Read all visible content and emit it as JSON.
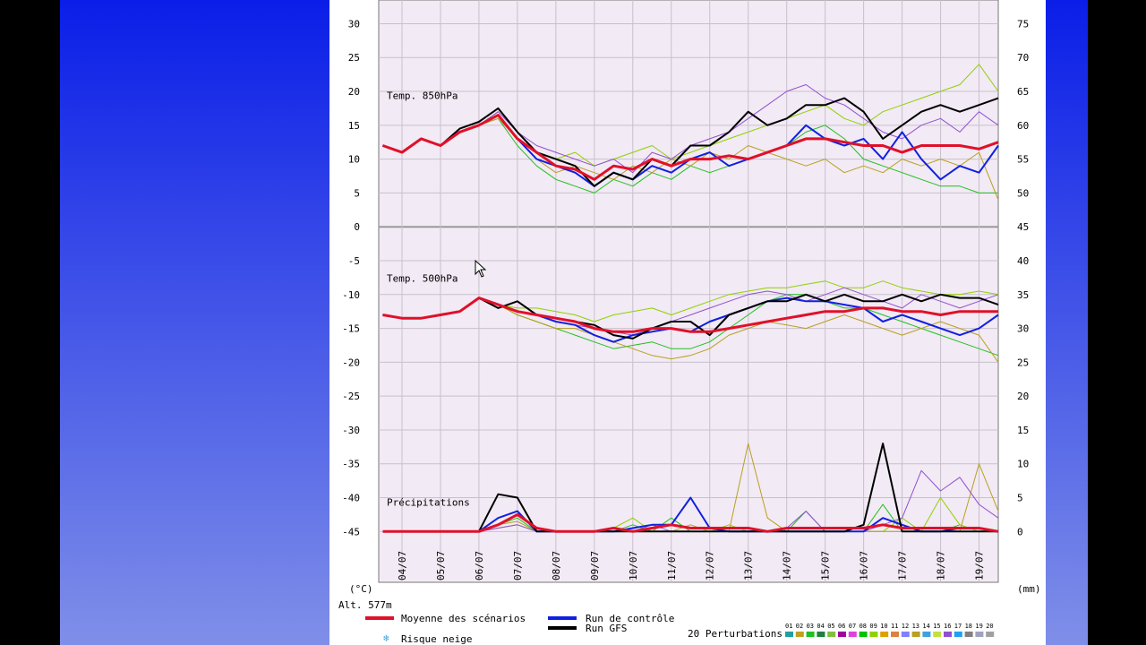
{
  "chart_data": {
    "type": "line",
    "alt_label": "Alt. 577m",
    "ylabel": "(°C)",
    "y2label": "(mm)",
    "categories": [
      null,
      "04/07",
      null,
      "05/07",
      null,
      "06/07",
      null,
      "07/07",
      null,
      "08/07",
      null,
      "09/07",
      null,
      "10/07",
      null,
      "11/07",
      null,
      "12/07",
      null,
      "13/07",
      null,
      "14/07",
      null,
      "15/07",
      null,
      "16/07",
      null,
      "17/07",
      null,
      "18/07",
      null,
      "19/07",
      null
    ],
    "ylim": [
      -52.5,
      33.5
    ],
    "yticks": [
      30,
      25,
      20,
      15,
      10,
      5,
      0,
      -5,
      -10,
      -15,
      -20,
      -25,
      -30,
      -35,
      -40,
      -45
    ],
    "y2lim": [
      -7.5,
      78.5
    ],
    "y2ticks": [
      75,
      70,
      65,
      60,
      55,
      50,
      45,
      40,
      35,
      30,
      25,
      20,
      15,
      10,
      5,
      0
    ],
    "grid": true,
    "panels": [
      {
        "label": "Temp. 850hPa",
        "axis": "y"
      },
      {
        "label": "Temp. 500hPa",
        "axis": "y"
      },
      {
        "label": "Précipitations",
        "axis": "y2"
      }
    ],
    "series": [
      {
        "name": "Moyenne des scénarios",
        "color": "#e0102a",
        "values": [
          [
            12,
            11,
            13,
            12,
            14,
            15,
            16.5,
            13,
            11,
            9,
            8.5,
            7,
            9,
            8.5,
            10,
            9,
            10,
            10,
            10.5,
            10,
            11,
            12,
            13,
            13,
            12.5,
            12,
            12,
            11,
            12,
            12,
            12,
            11.5,
            12.5
          ],
          [
            -13,
            -13.5,
            -13.5,
            -13,
            -12.5,
            -10.5,
            -11.5,
            -12.5,
            -13,
            -13.5,
            -14,
            -15,
            -15.5,
            -15.5,
            -15,
            -15,
            -15.5,
            -15.5,
            -15,
            -14.5,
            -14,
            -13.5,
            -13,
            -12.5,
            -12.5,
            -12,
            -12,
            -12.5,
            -12.5,
            -13,
            -12.5,
            -12.5,
            -12.5
          ],
          [
            0,
            0,
            0,
            0,
            0,
            0,
            1,
            2.5,
            0.5,
            0,
            0,
            0,
            0.5,
            0,
            0.5,
            1,
            0.5,
            0.5,
            0.5,
            0.5,
            0,
            0.5,
            0.5,
            0.5,
            0.5,
            0.5,
            1,
            0.5,
            0.5,
            0.5,
            0.5,
            0.5,
            0
          ]
        ]
      },
      {
        "name": "Run de contrôle",
        "color": "#1020e0",
        "values": [
          [
            12,
            11,
            13,
            12,
            14,
            15,
            16.5,
            13,
            10,
            9,
            8,
            6,
            8,
            7,
            9,
            8,
            10,
            11,
            9,
            10,
            11,
            12,
            15,
            13,
            12,
            13,
            10,
            14,
            10,
            7,
            9,
            8,
            12
          ],
          [
            -13,
            -13.5,
            -13.5,
            -13,
            -12.5,
            -10.5,
            -11.5,
            -12.5,
            -13,
            -14,
            -14.5,
            -16,
            -17,
            -16,
            -15.5,
            -15,
            -15.5,
            -14,
            -13,
            -12,
            -11,
            -10.5,
            -11,
            -11,
            -11.5,
            -12,
            -14,
            -13,
            -14,
            -15,
            -16,
            -15,
            -13
          ],
          [
            0,
            0,
            0,
            0,
            0,
            0,
            2,
            3,
            0,
            0,
            0,
            0,
            0,
            0.5,
            1,
            1,
            5,
            0.5,
            0,
            0,
            0,
            0,
            0,
            0,
            0,
            0,
            2,
            1,
            0,
            0,
            0.5,
            0.5,
            0
          ]
        ]
      },
      {
        "name": "Run GFS",
        "color": "#000000",
        "values": [
          [
            12,
            11,
            13,
            12,
            14.5,
            15.5,
            17.5,
            14,
            11,
            10,
            9,
            6,
            8,
            7,
            10,
            9,
            12,
            12,
            14,
            17,
            15,
            16,
            18,
            18,
            19,
            17,
            13,
            15,
            17,
            18,
            17,
            18,
            19
          ],
          [
            -13,
            -13.5,
            -13.5,
            -13,
            -12.5,
            -10.5,
            -12,
            -11,
            -13,
            -13.5,
            -14,
            -14.5,
            -16,
            -16.5,
            -15,
            -14,
            -14,
            -16,
            -13,
            -12,
            -11,
            -11,
            -10,
            -11,
            -10,
            -11,
            -11,
            -10,
            -11,
            -10,
            -10.5,
            -10.5,
            -11.5
          ],
          [
            0,
            0,
            0,
            0,
            0,
            0,
            5.5,
            5,
            0,
            0,
            0,
            0,
            0,
            0,
            0,
            0,
            0,
            0,
            0,
            0,
            0,
            0,
            0,
            0,
            0,
            1,
            13,
            0,
            0,
            0,
            0,
            0,
            0
          ]
        ]
      }
    ],
    "perturbations": {
      "label": "20 Perturbations",
      "members": [
        {
          "name": "01",
          "color": "#20a0a0"
        },
        {
          "name": "02",
          "color": "#c0a020"
        },
        {
          "name": "03",
          "color": "#20c020",
          "values": [
            [
              12,
              11,
              13,
              12,
              14,
              15,
              16,
              12,
              9,
              7,
              6,
              5,
              7,
              6,
              8,
              7,
              9,
              8,
              9,
              10,
              11,
              12,
              14,
              15,
              13,
              10,
              9,
              8,
              7,
              6,
              6,
              5,
              5
            ],
            [
              -13,
              -13.5,
              -13.5,
              -13,
              -12.5,
              -10.5,
              -11.5,
              -13,
              -14,
              -15,
              -16,
              -17,
              -18,
              -17.5,
              -17,
              -18,
              -18,
              -17,
              -15,
              -13,
              -11,
              -10,
              -10,
              -11,
              -12,
              -12,
              -13,
              -14,
              -15,
              -16,
              -17,
              -18,
              -19
            ],
            [
              0,
              0,
              0,
              0,
              0,
              0,
              1,
              2,
              0,
              0,
              0,
              0,
              0,
              1,
              0,
              2,
              0,
              0,
              0,
              0,
              0,
              0,
              3,
              0,
              0,
              0,
              4,
              0,
              0,
              0,
              1,
              0,
              0
            ]
          ]
        },
        {
          "name": "04",
          "color": "#208040"
        },
        {
          "name": "05",
          "color": "#80c040"
        },
        {
          "name": "06",
          "color": "#a000a0"
        },
        {
          "name": "07",
          "color": "#e040e0"
        },
        {
          "name": "08",
          "color": "#00c000"
        },
        {
          "name": "09",
          "color": "#90d000",
          "values": [
            [
              12,
              11,
              13,
              12,
              14,
              15,
              17,
              14,
              11,
              10,
              11,
              9,
              10,
              11,
              12,
              10,
              11,
              12,
              13,
              14,
              15,
              16,
              17,
              18,
              16,
              15,
              17,
              18,
              19,
              20,
              21,
              24,
              20
            ],
            [
              -13,
              -13.5,
              -13.5,
              -13,
              -12.5,
              -10.5,
              -11.5,
              -12,
              -12,
              -12.5,
              -13,
              -14,
              -13,
              -12.5,
              -12,
              -13,
              -12,
              -11,
              -10,
              -9.5,
              -9,
              -9,
              -8.5,
              -8,
              -9,
              -9,
              -8,
              -9,
              -9.5,
              -10,
              -10,
              -9.5,
              -10
            ],
            [
              0,
              0,
              0,
              0,
              0,
              0,
              0.5,
              1,
              0,
              0,
              0,
              0,
              0.5,
              2,
              0,
              0,
              0,
              0,
              1,
              0,
              0,
              0,
              0,
              0,
              0,
              0,
              0,
              2,
              0,
              5,
              1,
              0,
              0
            ]
          ]
        },
        {
          "name": "10",
          "color": "#e0a000"
        },
        {
          "name": "11",
          "color": "#e08040"
        },
        {
          "name": "12",
          "color": "#8080ff"
        },
        {
          "name": "13",
          "color": "#b8a020",
          "values": [
            [
              12,
              11,
              13,
              12,
              14,
              15,
              16,
              13,
              10,
              8,
              9,
              8,
              7,
              9,
              8,
              10,
              9,
              11,
              10,
              12,
              11,
              10,
              9,
              10,
              8,
              9,
              8,
              10,
              9,
              10,
              9,
              11,
              4
            ],
            [
              -13,
              -13.5,
              -13.5,
              -13,
              -12.5,
              -10.5,
              -11.5,
              -13,
              -14,
              -15,
              -15,
              -16,
              -17,
              -18,
              -19,
              -19.5,
              -19,
              -18,
              -16,
              -15,
              -14,
              -14.5,
              -15,
              -14,
              -13,
              -14,
              -15,
              -16,
              -15,
              -14,
              -15,
              -16,
              -20
            ],
            [
              0,
              0,
              0,
              0,
              0,
              0,
              1,
              1.5,
              0,
              0,
              0,
              0,
              0,
              0,
              0,
              0,
              1,
              0,
              0,
              13,
              2,
              0,
              0,
              0,
              0,
              0,
              0,
              0,
              0,
              0,
              0,
              10,
              3
            ]
          ]
        },
        {
          "name": "14",
          "color": "#40a0e0"
        },
        {
          "name": "15",
          "color": "#c0e040"
        },
        {
          "name": "16",
          "color": "#9050d0",
          "values": [
            [
              12,
              11,
              13,
              12,
              14,
              15,
              17,
              14,
              12,
              11,
              10,
              9,
              10,
              8,
              11,
              10,
              12,
              13,
              14,
              16,
              18,
              20,
              21,
              19,
              18,
              16,
              14,
              13,
              15,
              16,
              14,
              17,
              15
            ],
            [
              -13,
              -13.5,
              -13.5,
              -13,
              -12.5,
              -10.5,
              -11.5,
              -12.5,
              -13,
              -14,
              -14.5,
              -15,
              -15.5,
              -16,
              -15,
              -14,
              -13,
              -12,
              -11,
              -10,
              -9.5,
              -10,
              -11,
              -10,
              -9,
              -10,
              -11,
              -12,
              -10,
              -11,
              -12,
              -11,
              -10
            ],
            [
              0,
              0,
              0,
              0,
              0,
              0,
              0.5,
              1,
              0,
              0,
              0,
              0,
              0,
              0,
              1,
              0,
              0,
              0,
              0,
              0,
              0,
              0.5,
              3,
              0,
              0,
              0,
              1,
              2,
              9,
              6,
              8,
              4,
              2
            ]
          ]
        },
        {
          "name": "17",
          "color": "#20a0f0"
        },
        {
          "name": "18",
          "color": "#808080"
        },
        {
          "name": "19",
          "color": "#a0a0c0"
        },
        {
          "name": "20",
          "color": "#a0a0a0"
        }
      ]
    },
    "snow_label": "Risque neige"
  }
}
